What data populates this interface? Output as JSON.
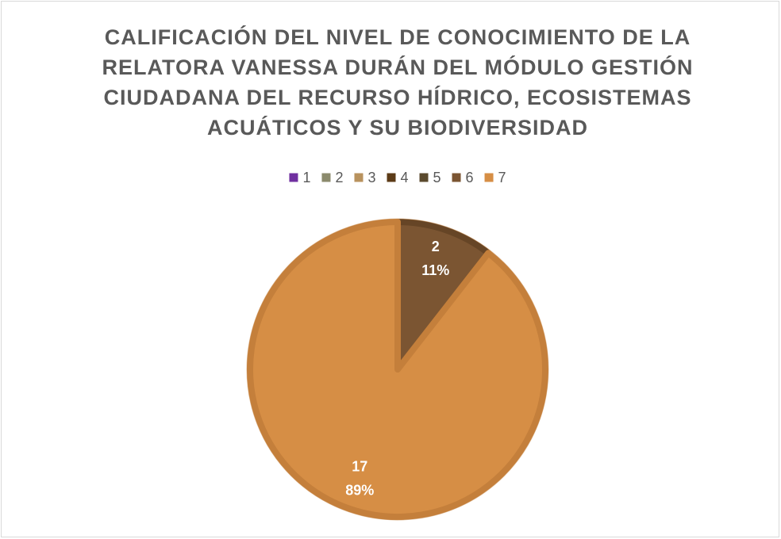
{
  "chart_data": {
    "type": "pie",
    "title": "CALIFICACIÓN DEL NIVEL DE CONOCIMIENTO DE LA RELATORA VANESSA DURÁN DEL MÓDULO GESTIÓN CIUDADANA DEL RECURSO HÍDRICO, ECOSISTEMAS ACUÁTICOS Y SU BIODIVERSIDAD",
    "categories": [
      "1",
      "2",
      "3",
      "4",
      "5",
      "6",
      "7"
    ],
    "values": [
      0,
      0,
      0,
      0,
      0,
      2,
      17
    ],
    "percent_labels": [
      null,
      null,
      null,
      null,
      null,
      "11%",
      "89%"
    ],
    "colors": [
      "#7030a0",
      "#8b8a6c",
      "#b8925e",
      "#5c3b17",
      "#5b4a2e",
      "#7b5532",
      "#d68e45"
    ],
    "legend": "top"
  }
}
